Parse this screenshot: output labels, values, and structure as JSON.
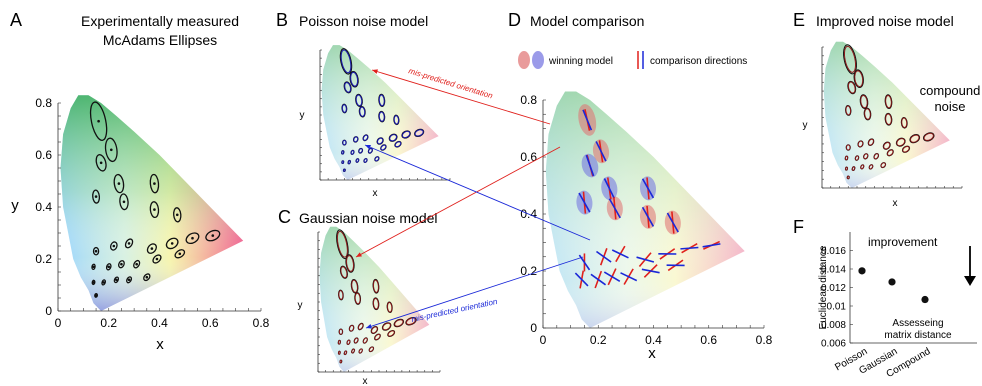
{
  "panels": {
    "A": {
      "letter": "A",
      "title_line1": "Experimentally measured",
      "title_line2": "McAdams Ellipses"
    },
    "B": {
      "letter": "B",
      "title": "Poisson noise model"
    },
    "C": {
      "letter": "C",
      "title": "Gaussian noise model"
    },
    "D": {
      "letter": "D",
      "title": "Model comparison"
    },
    "E": {
      "letter": "E",
      "title": "Improved noise model",
      "label_line1": "compound",
      "label_line2": "noise"
    },
    "F": {
      "letter": "F",
      "improvement_label": "improvement",
      "note_line1": "Assesseing",
      "note_line2": "matrix distance"
    }
  },
  "axes": {
    "x_label": "x",
    "y_label": "y",
    "ticks_main": [
      "0",
      "0.2",
      "0.4",
      "0.6",
      "0.8"
    ]
  },
  "legend": {
    "winning": "winning model",
    "directions": "comparison directions"
  },
  "annotations": {
    "mis1": "mis-predicted orientation",
    "mis2": "mis-predicted orientation"
  },
  "colors": {
    "poisson": "#1a1aa8",
    "gaussian": "#8b1a1a",
    "red_line": "#e0201c",
    "blue_line": "#1a28d8",
    "winning_red": "#e07070",
    "winning_blue": "#7070e0"
  },
  "chart_data": [
    {
      "type": "scatter",
      "panel": "A",
      "xlabel": "x",
      "ylabel": "y",
      "xlim": [
        0,
        0.8
      ],
      "ylim": [
        0,
        0.8
      ],
      "xticks": [
        0,
        0.2,
        0.4,
        0.6,
        0.8
      ],
      "yticks": [
        0,
        0.2,
        0.4,
        0.6,
        0.8
      ],
      "ellipses": [
        {
          "x": 0.16,
          "y": 0.73,
          "rx": 0.028,
          "ry": 0.075,
          "angle": -12
        },
        {
          "x": 0.21,
          "y": 0.62,
          "rx": 0.022,
          "ry": 0.045,
          "angle": -8
        },
        {
          "x": 0.17,
          "y": 0.57,
          "rx": 0.018,
          "ry": 0.032,
          "angle": -15
        },
        {
          "x": 0.24,
          "y": 0.49,
          "rx": 0.018,
          "ry": 0.035,
          "angle": -8
        },
        {
          "x": 0.26,
          "y": 0.42,
          "rx": 0.016,
          "ry": 0.03,
          "angle": -5
        },
        {
          "x": 0.15,
          "y": 0.44,
          "rx": 0.013,
          "ry": 0.025,
          "angle": -5
        },
        {
          "x": 0.38,
          "y": 0.49,
          "rx": 0.016,
          "ry": 0.035,
          "angle": -5
        },
        {
          "x": 0.38,
          "y": 0.39,
          "rx": 0.016,
          "ry": 0.03,
          "angle": -5
        },
        {
          "x": 0.47,
          "y": 0.37,
          "rx": 0.014,
          "ry": 0.027,
          "angle": -5
        },
        {
          "x": 0.15,
          "y": 0.23,
          "rx": 0.01,
          "ry": 0.014,
          "angle": 0
        },
        {
          "x": 0.22,
          "y": 0.25,
          "rx": 0.012,
          "ry": 0.016,
          "angle": 20
        },
        {
          "x": 0.28,
          "y": 0.26,
          "rx": 0.012,
          "ry": 0.018,
          "angle": 30
        },
        {
          "x": 0.37,
          "y": 0.24,
          "rx": 0.015,
          "ry": 0.02,
          "angle": 40
        },
        {
          "x": 0.45,
          "y": 0.26,
          "rx": 0.018,
          "ry": 0.024,
          "angle": 55
        },
        {
          "x": 0.53,
          "y": 0.28,
          "rx": 0.018,
          "ry": 0.026,
          "angle": 60
        },
        {
          "x": 0.61,
          "y": 0.29,
          "rx": 0.018,
          "ry": 0.028,
          "angle": 65
        },
        {
          "x": 0.14,
          "y": 0.17,
          "rx": 0.006,
          "ry": 0.01,
          "angle": 10
        },
        {
          "x": 0.2,
          "y": 0.17,
          "rx": 0.008,
          "ry": 0.012,
          "angle": 20
        },
        {
          "x": 0.25,
          "y": 0.18,
          "rx": 0.01,
          "ry": 0.014,
          "angle": 25
        },
        {
          "x": 0.31,
          "y": 0.18,
          "rx": 0.01,
          "ry": 0.015,
          "angle": 30
        },
        {
          "x": 0.39,
          "y": 0.2,
          "rx": 0.012,
          "ry": 0.018,
          "angle": 45
        },
        {
          "x": 0.48,
          "y": 0.22,
          "rx": 0.013,
          "ry": 0.02,
          "angle": 55
        },
        {
          "x": 0.14,
          "y": 0.11,
          "rx": 0.005,
          "ry": 0.008,
          "angle": 10
        },
        {
          "x": 0.18,
          "y": 0.11,
          "rx": 0.006,
          "ry": 0.01,
          "angle": 20
        },
        {
          "x": 0.23,
          "y": 0.12,
          "rx": 0.007,
          "ry": 0.011,
          "angle": 25
        },
        {
          "x": 0.28,
          "y": 0.12,
          "rx": 0.008,
          "ry": 0.012,
          "angle": 30
        },
        {
          "x": 0.35,
          "y": 0.13,
          "rx": 0.01,
          "ry": 0.014,
          "angle": 40
        },
        {
          "x": 0.15,
          "y": 0.06,
          "rx": 0.005,
          "ry": 0.007,
          "angle": 10
        }
      ]
    },
    {
      "type": "scatter",
      "panel": "F",
      "ylabel": "Euclidean distance",
      "categories": [
        "Poisson",
        "Gaussian",
        "Compound"
      ],
      "values": [
        0.0138,
        0.0126,
        0.0107
      ],
      "ylim": [
        0.006,
        0.018
      ],
      "yticks": [
        0.006,
        0.008,
        0.01,
        0.012,
        0.014,
        0.016
      ]
    }
  ]
}
